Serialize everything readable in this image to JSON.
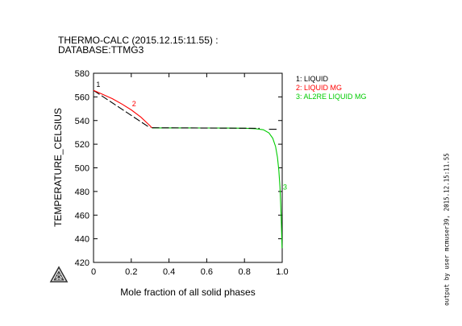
{
  "chart_data": {
    "type": "line",
    "title_lines": [
      "THERMO-CALC (2015.12.15:11.55) :",
      "DATABASE:TTMG3"
    ],
    "xlabel": "Mole fraction of all solid phases",
    "ylabel": "TEMPERATURE_CELSIUS",
    "xlim": [
      0,
      1.0
    ],
    "ylim": [
      420,
      580
    ],
    "x_ticks": [
      0,
      0.2,
      0.4,
      0.6,
      0.8,
      1.0
    ],
    "x_tick_labels": [
      "0",
      "0.2",
      "0.4",
      "0.6",
      "0.8",
      "1.0"
    ],
    "y_ticks": [
      420,
      440,
      460,
      480,
      500,
      520,
      540,
      560,
      580
    ],
    "y_tick_labels": [
      "420",
      "440",
      "460",
      "480",
      "500",
      "520",
      "540",
      "560",
      "580"
    ],
    "legend": {
      "placement": "right",
      "entries": [
        {
          "label": "1: LIQUID",
          "color": "#000000"
        },
        {
          "label": "2: LIQUID MG",
          "color": "#ff0000"
        },
        {
          "label": "3: AL2RE LIQUID MG",
          "color": "#00cc00"
        }
      ]
    },
    "series": [
      {
        "id": 1,
        "color": "#000000",
        "x": [
          0,
          0.3
        ],
        "y": [
          565.5,
          533.8
        ],
        "dash": true
      },
      {
        "id": 2,
        "color": "#ff0000",
        "x": [
          0,
          0.05,
          0.1,
          0.15,
          0.2,
          0.25,
          0.3,
          0.31
        ],
        "y": [
          565.5,
          562.0,
          558.5,
          554.0,
          549.0,
          543.0,
          535.5,
          533.8
        ]
      },
      {
        "id": 3,
        "color": "#00cc00",
        "x": [
          0.31,
          0.4,
          0.5,
          0.6,
          0.7,
          0.8,
          0.86,
          0.9,
          0.93,
          0.95,
          0.965,
          0.975,
          0.982,
          0.988,
          0.992,
          0.995,
          0.997,
          0.999
        ],
        "y": [
          533.8,
          533.8,
          533.8,
          533.7,
          533.6,
          533.5,
          533.1,
          532.2,
          529.5,
          525.0,
          518.0,
          509.0,
          498.0,
          484.0,
          470.0,
          457.0,
          445.0,
          432.0
        ]
      },
      {
        "id": 1,
        "color": "#000000",
        "x": [
          0.31,
          0.88
        ],
        "y": [
          533.9,
          533.4
        ],
        "dash": true
      },
      {
        "id": 1,
        "color": "#000000",
        "x": [
          0.93,
          0.97
        ],
        "y": [
          532.6,
          532.6
        ],
        "dash": false
      }
    ],
    "curve_labels": [
      {
        "text": "1",
        "x": 0.01,
        "y": 568.5,
        "color": "#000000"
      },
      {
        "text": "2",
        "x": 0.2,
        "y": 552.0,
        "color": "#ff0000"
      },
      {
        "text": "3",
        "x": 1.0,
        "y": 481.5,
        "color": "#00cc00"
      }
    ],
    "grid": false
  },
  "sidenote": "output by user mcmuser39, 2015.12.15:11.55",
  "logo_icon": "thermo-calc-triangle-logo"
}
